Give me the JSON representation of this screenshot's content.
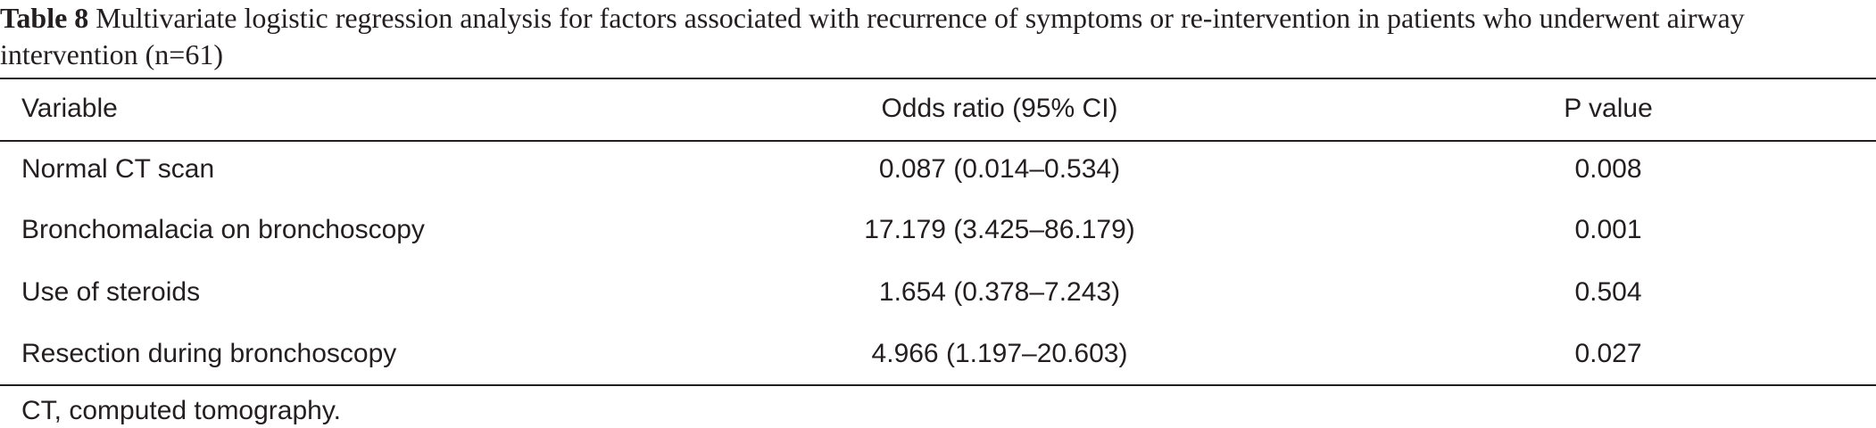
{
  "caption": {
    "label": "Table 8",
    "text": "Multivariate logistic regression analysis for factors associated with recurrence of symptoms or re-intervention in patients who underwent airway intervention (n=61)"
  },
  "table": {
    "headers": [
      "Variable",
      "Odds ratio (95% CI)",
      "P value"
    ],
    "rows": [
      [
        "Normal CT scan",
        "0.087 (0.014–0.534)",
        "0.008"
      ],
      [
        "Bronchomalacia on bronchoscopy",
        "17.179 (3.425–86.179)",
        "0.001"
      ],
      [
        "Use of steroids",
        "1.654 (0.378–7.243)",
        "0.504"
      ],
      [
        "Resection during bronchoscopy",
        "4.966 (1.197–20.603)",
        "0.027"
      ]
    ]
  },
  "footnote": "CT, computed tomography."
}
